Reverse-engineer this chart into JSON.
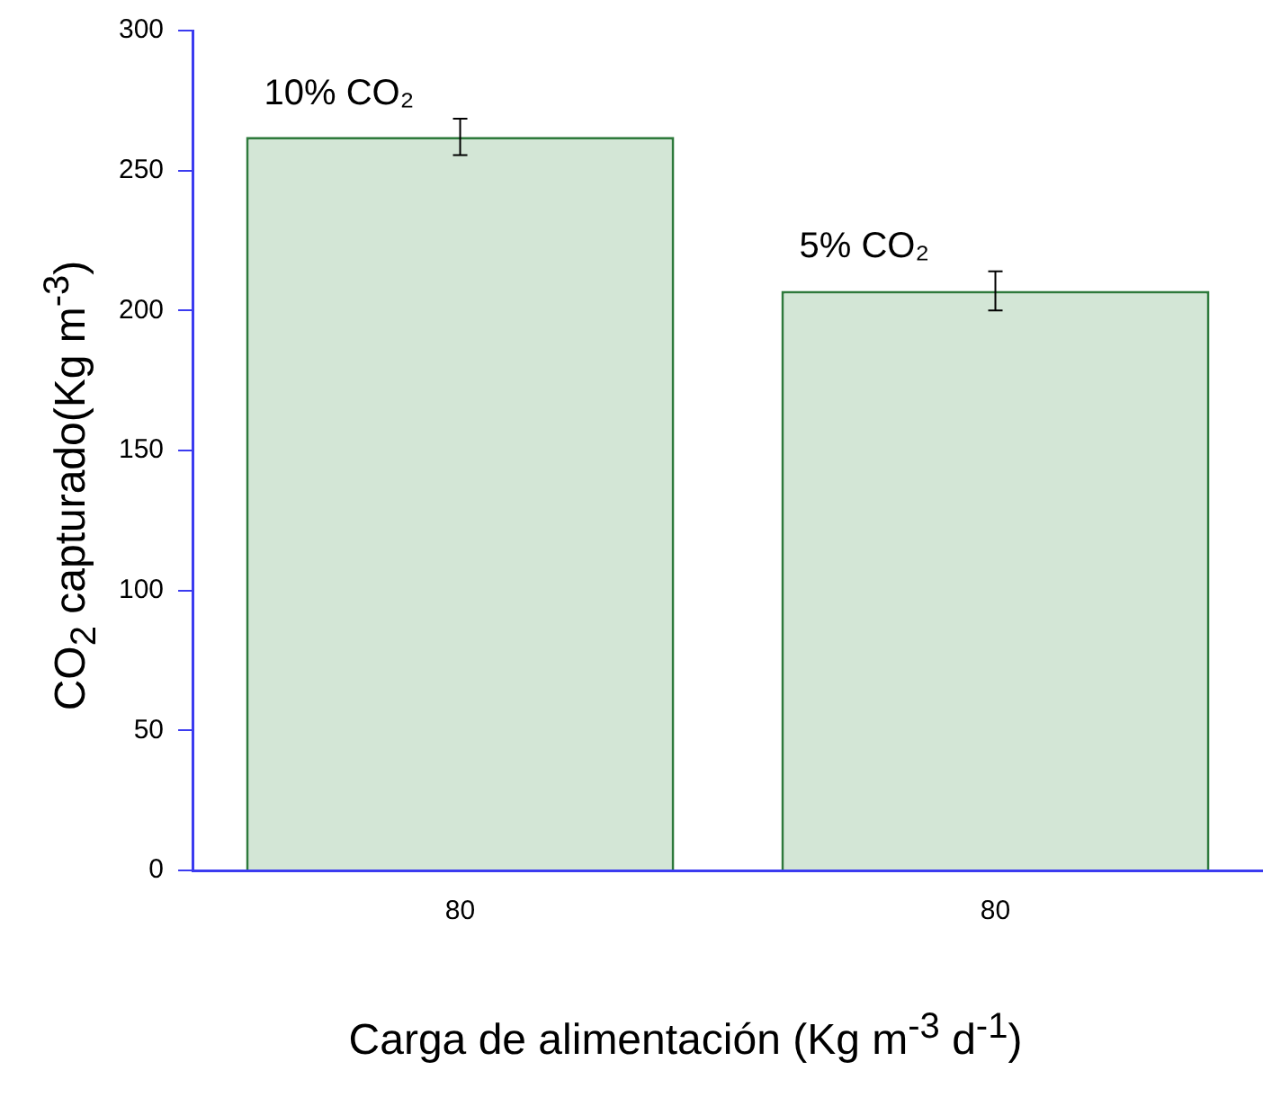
{
  "chart_data": {
    "type": "bar",
    "xlabel": "Carga de alimentación (Kg m$^{-3}$ d$^{-1}$)",
    "ylabel": "CO$_{2}$ capturado(Kg m$^{-3}$)",
    "categories": [
      "80",
      "80"
    ],
    "values": [
      262,
      207
    ],
    "errors": [
      6.5,
      7
    ],
    "color": "#d3e6d6",
    "annotations": [
      "10% CO₂",
      "5% CO₂"
    ],
    "ylim": [
      0,
      300
    ],
    "yticks": [
      0,
      50,
      100,
      150,
      200,
      250,
      300
    ],
    "grid": false,
    "legend": false
  }
}
